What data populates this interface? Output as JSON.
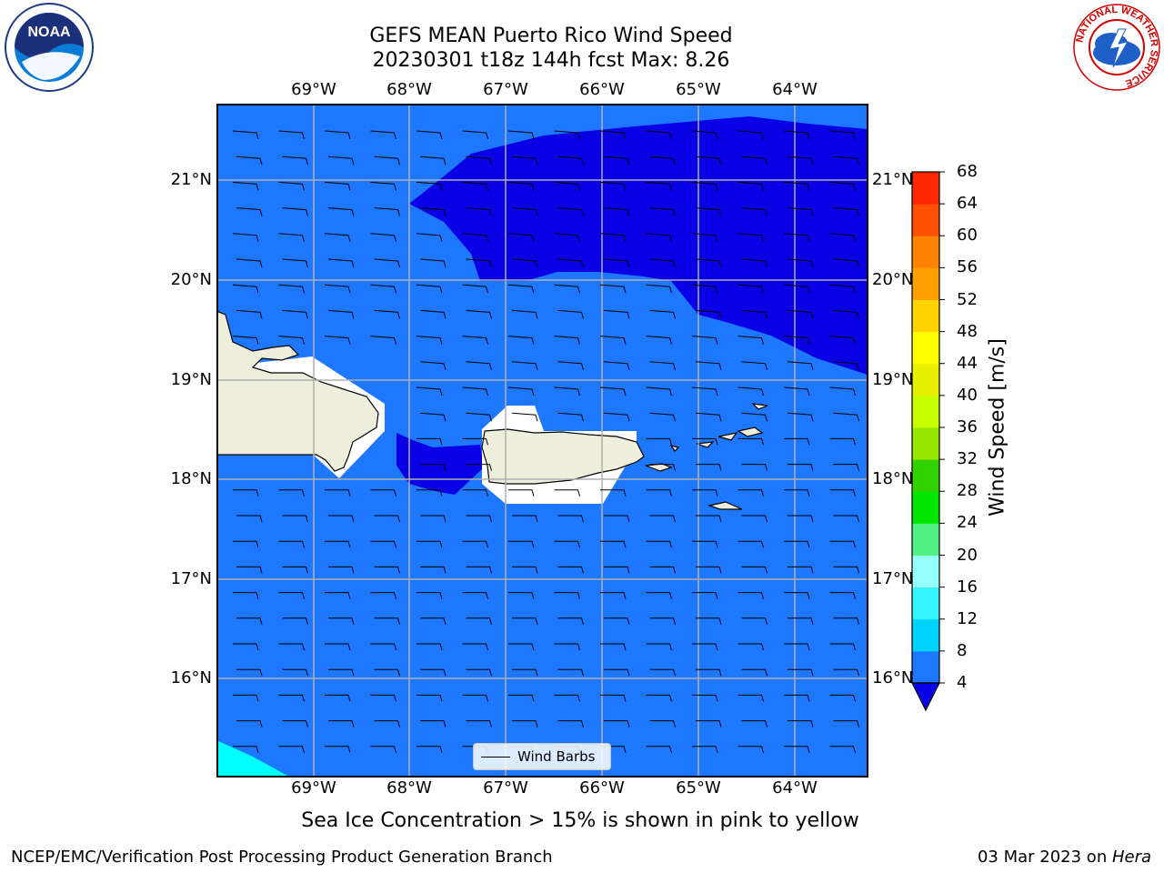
{
  "title": {
    "line1": "GEFS MEAN Puerto Rico Wind Speed",
    "line2": "20230301 t18z 144h fcst   Max: 8.26"
  },
  "map": {
    "lon_labels": [
      "69°W",
      "68°W",
      "67°W",
      "66°W",
      "65°W",
      "64°W"
    ],
    "lat_labels": [
      "21°N",
      "20°N",
      "19°N",
      "18°N",
      "17°N",
      "16°N"
    ],
    "colors": {
      "ocean_base": "#1e78ff",
      "low_wind": "#0a00e6",
      "cyan_corner": "#00ffff",
      "land": "#eeeedd",
      "masked": "#ffffff",
      "grid": "#b0b0b0"
    },
    "wind_barbs_legend": "Wind Barbs"
  },
  "colorbar": {
    "title": "Wind Speed [m/s]",
    "levels": [
      "4",
      "8",
      "12",
      "16",
      "20",
      "24",
      "28",
      "32",
      "36",
      "40",
      "44",
      "48",
      "52",
      "56",
      "60",
      "64",
      "68"
    ],
    "colors": [
      "#1e78ff",
      "#00d2ff",
      "#32f5ff",
      "#96ffff",
      "#50f082",
      "#00e600",
      "#32d200",
      "#96e600",
      "#c8ff00",
      "#e6f000",
      "#ffff00",
      "#ffd200",
      "#ffa000",
      "#ff8200",
      "#ff5000",
      "#ff2800"
    ],
    "extend_color": "#0a00e6"
  },
  "subtitle": "Sea Ice Concentration > 15% is shown in pink to yellow",
  "footer": {
    "left": "NCEP/EMC/Verification Post Processing Product Generation Branch",
    "right_date": "03 Mar 2023 on ",
    "right_machine": "Hera"
  },
  "logos": {
    "noaa_text": "NOAA",
    "nws_text": "NATIONAL WEATHER SERVICE"
  }
}
